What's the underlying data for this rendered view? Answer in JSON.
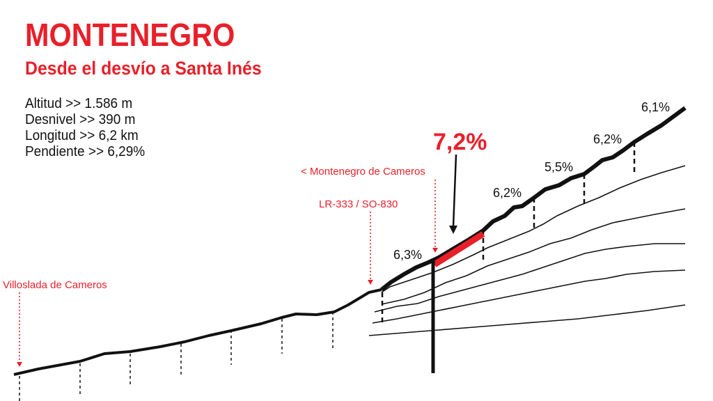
{
  "title": "MONTENEGRO",
  "subtitle": "Desde el desvío a Santa Inés",
  "stats": [
    "Altitud >> 1.586 m",
    "Desnivel >> 390 m",
    "Longitud >> 6,2 km",
    "Pendiente >> 6,29%"
  ],
  "places": {
    "villoslada": "Villoslada de Cameros",
    "junction": "LR-333 / SO-830",
    "montenegro": "< Montenegro de Cameros"
  },
  "max_grade": "7,2%",
  "segment_grades": [
    "6,3%",
    "6,2%",
    "5,5%",
    "6,2%",
    "6,1%"
  ],
  "colors": {
    "accent": "#e8202a",
    "line": "#111111"
  }
}
